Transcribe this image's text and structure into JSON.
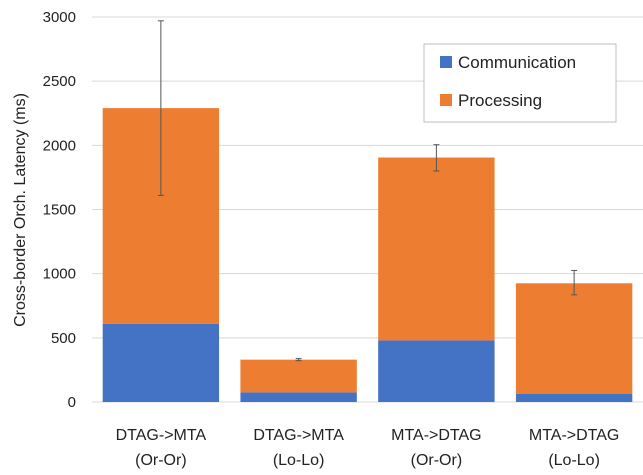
{
  "chart_data": {
    "type": "bar",
    "stacked": true,
    "ylabel": "Cross-border Orch. Latency (ms)",
    "xlabel": "",
    "ylim": [
      0,
      3000
    ],
    "yticks": [
      0,
      500,
      1000,
      1500,
      2000,
      2500,
      3000
    ],
    "grid": true,
    "legend_position": "top-right",
    "categories": [
      [
        "DTAG->MTA",
        "(Or-Or)"
      ],
      [
        "DTAG->MTA",
        "(Lo-Lo)"
      ],
      [
        "MTA->DTAG",
        "(Or-Or)"
      ],
      [
        "MTA->DTAG",
        "(Lo-Lo)"
      ]
    ],
    "series": [
      {
        "name": "Communication",
        "color": "#4472c4",
        "values": [
          610,
          75,
          480,
          65
        ]
      },
      {
        "name": "Processing",
        "color": "#ed7d31",
        "values": [
          1680,
          255,
          1425,
          860
        ]
      }
    ],
    "error_bars": [
      {
        "low": 1610,
        "high": 2970
      },
      {
        "low": 322,
        "high": 338
      },
      {
        "low": 1800,
        "high": 2005
      },
      {
        "low": 835,
        "high": 1025
      }
    ]
  }
}
